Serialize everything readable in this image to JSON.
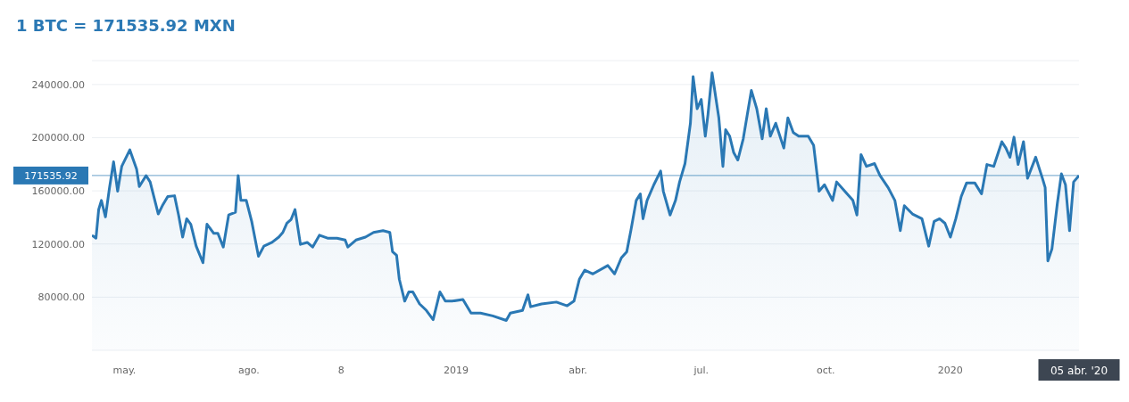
{
  "chart_data": {
    "type": "area",
    "title": "1 BTC = 171535.92 MXN",
    "x": [
      "2018-04-07",
      "2018-04-10",
      "2018-04-12",
      "2018-04-14",
      "2018-04-17",
      "2018-04-20",
      "2018-04-23",
      "2018-04-26",
      "2018-04-29",
      "2018-05-05",
      "2018-05-10",
      "2018-05-12",
      "2018-05-17",
      "2018-05-20",
      "2018-05-26",
      "2018-05-29",
      "2018-06-02",
      "2018-06-07",
      "2018-06-10",
      "2018-06-13",
      "2018-06-16",
      "2018-06-19",
      "2018-06-23",
      "2018-06-28",
      "2018-07-01",
      "2018-07-06",
      "2018-07-09",
      "2018-07-13",
      "2018-07-17",
      "2018-07-22",
      "2018-07-24",
      "2018-07-26",
      "2018-07-30",
      "2018-08-03",
      "2018-08-08",
      "2018-08-12",
      "2018-08-18",
      "2018-08-23",
      "2018-08-26",
      "2018-08-29",
      "2018-09-01",
      "2018-09-04",
      "2018-09-08",
      "2018-09-13",
      "2018-09-17",
      "2018-09-22",
      "2018-09-28",
      "2018-10-05",
      "2018-10-11",
      "2018-10-13",
      "2018-10-19",
      "2018-10-26",
      "2018-11-01",
      "2018-11-08",
      "2018-11-13",
      "2018-11-15",
      "2018-11-18",
      "2018-11-20",
      "2018-11-24",
      "2018-11-27",
      "2018-11-30",
      "2018-12-05",
      "2018-12-10",
      "2018-12-15",
      "2018-12-20",
      "2018-12-24",
      "2018-12-29",
      "2019-01-06",
      "2019-01-12",
      "2019-01-19",
      "2019-01-28",
      "2019-02-07",
      "2019-02-10",
      "2019-02-19",
      "2019-02-23",
      "2019-02-25",
      "2019-03-05",
      "2019-03-16",
      "2019-03-24",
      "2019-03-29",
      "2019-04-02",
      "2019-04-06",
      "2019-04-12",
      "2019-04-23",
      "2019-04-28",
      "2019-05-03",
      "2019-05-07",
      "2019-05-10",
      "2019-05-14",
      "2019-05-17",
      "2019-05-19",
      "2019-05-22",
      "2019-05-27",
      "2019-06-01",
      "2019-06-03",
      "2019-06-08",
      "2019-06-12",
      "2019-06-15",
      "2019-06-19",
      "2019-06-23",
      "2019-06-25",
      "2019-06-28",
      "2019-07-01",
      "2019-07-04",
      "2019-07-06",
      "2019-07-09",
      "2019-07-14",
      "2019-07-17",
      "2019-07-19",
      "2019-07-22",
      "2019-07-25",
      "2019-07-28",
      "2019-08-01",
      "2019-08-07",
      "2019-08-11",
      "2019-08-15",
      "2019-08-18",
      "2019-08-21",
      "2019-08-25",
      "2019-08-31",
      "2019-09-03",
      "2019-09-07",
      "2019-09-11",
      "2019-09-18",
      "2019-09-22",
      "2019-09-26",
      "2019-09-30",
      "2019-10-06",
      "2019-10-09",
      "2019-10-15",
      "2019-10-21",
      "2019-10-24",
      "2019-10-27",
      "2019-10-31",
      "2019-11-06",
      "2019-11-10",
      "2019-11-16",
      "2019-11-21",
      "2019-11-25",
      "2019-11-28",
      "2019-12-04",
      "2019-12-11",
      "2019-12-16",
      "2019-12-20",
      "2019-12-24",
      "2019-12-28",
      "2020-01-01",
      "2020-01-05",
      "2020-01-09",
      "2020-01-13",
      "2020-01-19",
      "2020-01-24",
      "2020-01-28",
      "2020-02-02",
      "2020-02-08",
      "2020-02-11",
      "2020-02-14",
      "2020-02-17",
      "2020-02-20",
      "2020-02-24",
      "2020-02-27",
      "2020-03-04",
      "2020-03-09",
      "2020-03-11",
      "2020-03-13",
      "2020-03-16",
      "2020-03-20",
      "2020-03-23",
      "2020-03-26",
      "2020-03-29",
      "2020-04-01",
      "2020-04-05"
    ],
    "series": [
      {
        "color": "#2a78b4",
        "values": [
          126600,
          124400,
          146000,
          152800,
          140400,
          162500,
          181800,
          159700,
          178400,
          190800,
          176300,
          163200,
          171500,
          166700,
          142600,
          148800,
          155700,
          156300,
          141800,
          125200,
          139000,
          134900,
          118400,
          105900,
          134900,
          128000,
          128000,
          117700,
          141800,
          143900,
          171500,
          152800,
          152800,
          137000,
          110800,
          118400,
          121200,
          125200,
          128700,
          135600,
          138300,
          145900,
          119700,
          121200,
          117700,
          126600,
          124400,
          124400,
          123000,
          117700,
          123000,
          125200,
          128700,
          130000,
          128700,
          114200,
          111500,
          93500,
          77000,
          83900,
          83900,
          74900,
          70000,
          63100,
          83900,
          77000,
          77000,
          78300,
          68000,
          68000,
          65900,
          62500,
          68000,
          70000,
          81800,
          72800,
          74900,
          76300,
          73500,
          77000,
          93500,
          100300,
          97500,
          103800,
          97500,
          109600,
          114200,
          130000,
          152800,
          157700,
          139000,
          152800,
          164600,
          174900,
          159700,
          141800,
          152800,
          166700,
          180500,
          210900,
          246000,
          221800,
          228700,
          201100,
          217700,
          248800,
          214900,
          178400,
          206000,
          201100,
          188700,
          183200,
          199100,
          235600,
          221800,
          199100,
          221800,
          201100,
          210900,
          192200,
          214900,
          203900,
          201100,
          201100,
          194300,
          159700,
          164600,
          152800,
          166700,
          159700,
          152800,
          141800,
          187300,
          178400,
          180500,
          171500,
          162500,
          152800,
          130000,
          148800,
          142600,
          139000,
          118400,
          137000,
          139000,
          135600,
          125200,
          139000,
          155700,
          166000,
          166000,
          157700,
          179800,
          178400,
          197000,
          192200,
          185300,
          200400,
          179800,
          197000,
          169400,
          185300,
          169400,
          162500,
          107300,
          116300,
          150700,
          172800,
          164600,
          130000,
          166700,
          171500
        ]
      }
    ],
    "xlim": [
      "2018-04-07",
      "2020-04-05"
    ],
    "xticks": [
      {
        "value": "2018-05-01",
        "label": "may."
      },
      {
        "value": "2018-08-01",
        "label": "ago."
      },
      {
        "value": "2018-10-08",
        "label": "8"
      },
      {
        "value": "2019-01-01",
        "label": "2019"
      },
      {
        "value": "2019-04-01",
        "label": "abr."
      },
      {
        "value": "2019-07-01",
        "label": "jul."
      },
      {
        "value": "2019-10-01",
        "label": "oct."
      },
      {
        "value": "2020-01-01",
        "label": "2020"
      },
      {
        "value": "2020-04-05",
        "label": "05 abr. '20"
      }
    ],
    "ylim": [
      40000,
      258000
    ],
    "yticks": [
      {
        "value": 80000,
        "label": "80000.00"
      },
      {
        "value": 120000,
        "label": "120000.00"
      },
      {
        "value": 160000,
        "label": "160000.00"
      },
      {
        "value": 200000,
        "label": "200000.00"
      },
      {
        "value": 240000,
        "label": "240000.00"
      }
    ],
    "ref_lines": [
      {
        "axis": "y",
        "value": 171535.92,
        "label": "171535.92",
        "color": "#2a78b4"
      }
    ],
    "grid": "y"
  }
}
